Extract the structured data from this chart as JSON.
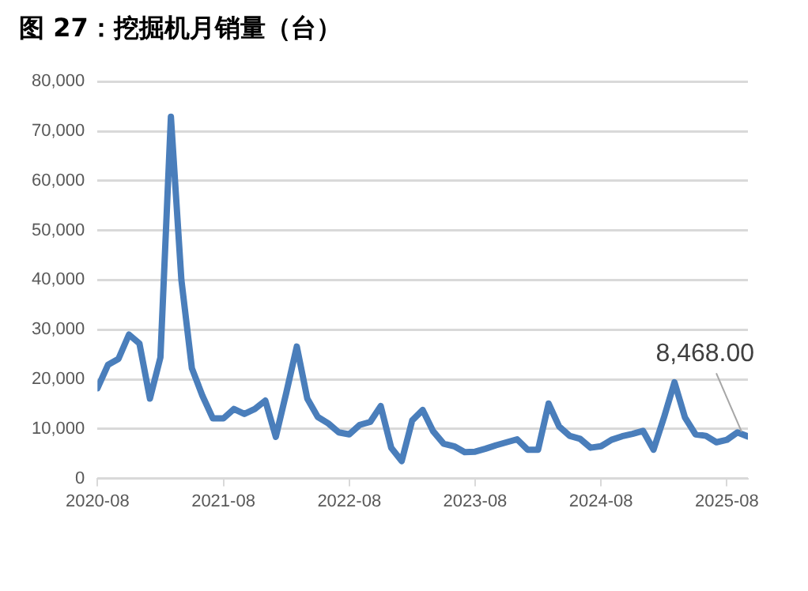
{
  "chart_data": {
    "type": "line",
    "title": "图 27：挖掘机月销量（台）",
    "x": [
      "2020-08",
      "2020-09",
      "2020-10",
      "2020-11",
      "2020-12",
      "2021-01",
      "2021-02",
      "2021-03",
      "2021-04",
      "2021-05",
      "2021-06",
      "2021-07",
      "2021-08",
      "2021-09",
      "2021-10",
      "2021-11",
      "2021-12",
      "2022-01",
      "2022-02",
      "2022-03",
      "2022-04",
      "2022-05",
      "2022-06",
      "2022-07",
      "2022-08",
      "2022-09",
      "2022-10",
      "2022-11",
      "2022-12",
      "2023-01",
      "2023-02",
      "2023-03",
      "2023-04",
      "2023-05",
      "2023-06",
      "2023-07",
      "2023-08",
      "2023-09",
      "2023-10",
      "2023-11",
      "2023-12",
      "2024-01",
      "2024-02",
      "2024-03",
      "2024-04",
      "2024-05",
      "2024-06",
      "2024-07",
      "2024-08",
      "2024-09",
      "2024-10",
      "2024-11",
      "2024-12",
      "2025-01",
      "2025-02",
      "2025-03",
      "2025-04",
      "2025-05",
      "2025-06",
      "2025-07",
      "2025-08",
      "2025-09",
      "2025-10"
    ],
    "series": [
      {
        "color": "#4a7ebb",
        "values": [
          18200,
          22900,
          24100,
          29000,
          27200,
          16100,
          24400,
          72900,
          40000,
          22200,
          16700,
          12100,
          12100,
          14000,
          13000,
          14000,
          15700,
          8400,
          17300,
          26600,
          16100,
          12400,
          11100,
          9300,
          8900,
          10800,
          11400,
          14600,
          6200,
          3500,
          11700,
          13800,
          9500,
          7000,
          6500,
          5300,
          5400,
          6000,
          6700,
          7300,
          7900,
          5800,
          5800,
          15100,
          10500,
          8600,
          8000,
          6200,
          6500,
          7800,
          8500,
          9000,
          9600,
          5800,
          12300,
          19400,
          12300,
          8900,
          8600,
          7300,
          7800,
          9300,
          8468
        ],
        "value_labels": [
          null,
          null,
          null,
          null,
          null,
          null,
          null,
          null,
          null,
          null,
          null,
          null,
          null,
          null,
          null,
          null,
          null,
          null,
          null,
          null,
          null,
          null,
          null,
          null,
          null,
          null,
          null,
          null,
          null,
          null,
          null,
          null,
          null,
          null,
          null,
          null,
          null,
          null,
          null,
          null,
          null,
          null,
          null,
          null,
          null,
          null,
          null,
          null,
          null,
          null,
          null,
          null,
          null,
          null,
          null,
          null,
          null,
          null,
          null,
          null,
          null,
          null,
          "8,468.00"
        ]
      }
    ],
    "xlim": [
      "2020-08",
      "2025-10"
    ],
    "xticks": [
      "2020-08",
      "2021-08",
      "2022-08",
      "2023-08",
      "2024-08",
      "2025-08"
    ],
    "ylim": [
      0,
      80000
    ],
    "yticks": [
      0,
      {
        "value": 10000,
        "label": "10,000"
      },
      {
        "value": 20000,
        "label": "20,000"
      },
      {
        "value": 30000,
        "label": "30,000"
      },
      {
        "value": 40000,
        "label": "40,000"
      },
      {
        "value": 50000,
        "label": "50,000"
      },
      {
        "value": 60000,
        "label": "60,000"
      },
      {
        "value": 70000,
        "label": "70,000"
      },
      {
        "value": 80000,
        "label": "80,000"
      }
    ],
    "grid": "y",
    "legend": false,
    "marker": "none",
    "line_style": "solid"
  }
}
